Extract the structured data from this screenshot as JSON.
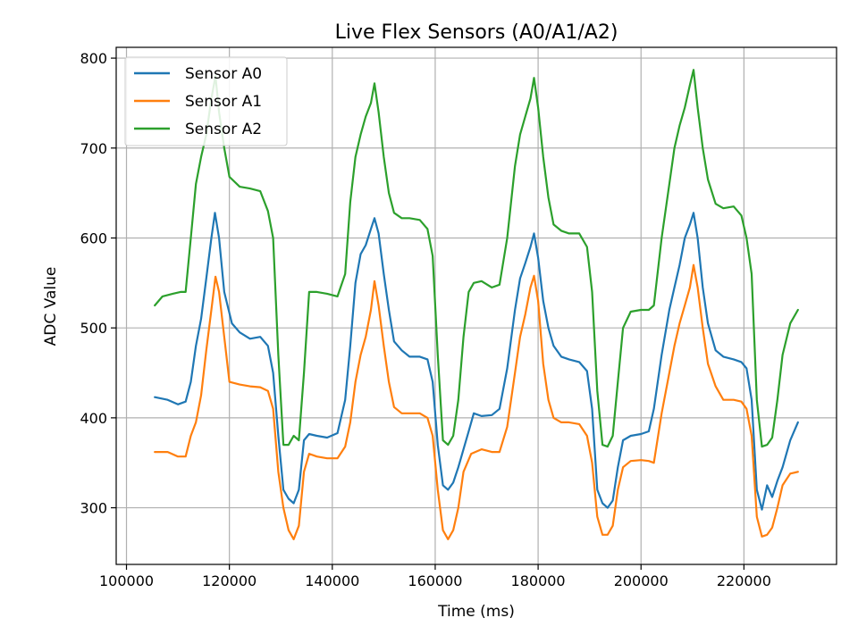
{
  "chart_data": {
    "type": "line",
    "title": "Live Flex Sensors (A0/A1/A2)",
    "xlabel": "Time (ms)",
    "ylabel": "ADC Value",
    "xlim": [
      98000,
      238000
    ],
    "ylim": [
      237,
      812
    ],
    "xticks": [
      100000,
      120000,
      140000,
      160000,
      180000,
      200000,
      220000
    ],
    "yticks": [
      300,
      400,
      500,
      600,
      700,
      800
    ],
    "grid": true,
    "legend_position": "top-left",
    "series": [
      {
        "name": "Sensor A0",
        "color": "#1f77b4",
        "points": [
          [
            105500,
            423
          ],
          [
            108000,
            420
          ],
          [
            110000,
            415
          ],
          [
            111500,
            418
          ],
          [
            112500,
            440
          ],
          [
            113500,
            480
          ],
          [
            114500,
            510
          ],
          [
            115500,
            555
          ],
          [
            116500,
            600
          ],
          [
            117200,
            628
          ],
          [
            118000,
            600
          ],
          [
            119000,
            540
          ],
          [
            120500,
            505
          ],
          [
            122000,
            495
          ],
          [
            124000,
            488
          ],
          [
            126000,
            490
          ],
          [
            127500,
            480
          ],
          [
            128500,
            450
          ],
          [
            129500,
            380
          ],
          [
            130500,
            320
          ],
          [
            131500,
            310
          ],
          [
            132500,
            305
          ],
          [
            133500,
            320
          ],
          [
            134500,
            375
          ],
          [
            135500,
            382
          ],
          [
            137000,
            380
          ],
          [
            139000,
            378
          ],
          [
            141000,
            383
          ],
          [
            142500,
            420
          ],
          [
            143500,
            480
          ],
          [
            144500,
            550
          ],
          [
            145500,
            582
          ],
          [
            146500,
            592
          ],
          [
            147500,
            610
          ],
          [
            148200,
            622
          ],
          [
            149000,
            605
          ],
          [
            150000,
            560
          ],
          [
            151000,
            520
          ],
          [
            152000,
            485
          ],
          [
            153500,
            475
          ],
          [
            155000,
            468
          ],
          [
            157000,
            468
          ],
          [
            158500,
            465
          ],
          [
            159500,
            440
          ],
          [
            160500,
            370
          ],
          [
            161500,
            325
          ],
          [
            162500,
            320
          ],
          [
            163500,
            328
          ],
          [
            164500,
            345
          ],
          [
            165500,
            365
          ],
          [
            166500,
            385
          ],
          [
            167500,
            405
          ],
          [
            169000,
            402
          ],
          [
            171000,
            403
          ],
          [
            172500,
            410
          ],
          [
            174000,
            455
          ],
          [
            175500,
            520
          ],
          [
            176500,
            555
          ],
          [
            177500,
            572
          ],
          [
            178500,
            590
          ],
          [
            179200,
            605
          ],
          [
            180000,
            578
          ],
          [
            181000,
            530
          ],
          [
            182000,
            500
          ],
          [
            183000,
            480
          ],
          [
            184500,
            468
          ],
          [
            186000,
            465
          ],
          [
            188000,
            462
          ],
          [
            189500,
            452
          ],
          [
            190500,
            410
          ],
          [
            191500,
            320
          ],
          [
            192500,
            305
          ],
          [
            193500,
            300
          ],
          [
            194500,
            308
          ],
          [
            195500,
            345
          ],
          [
            196500,
            375
          ],
          [
            198000,
            380
          ],
          [
            200000,
            382
          ],
          [
            201500,
            385
          ],
          [
            202500,
            410
          ],
          [
            204000,
            470
          ],
          [
            205500,
            520
          ],
          [
            206500,
            545
          ],
          [
            207500,
            570
          ],
          [
            208500,
            600
          ],
          [
            209500,
            615
          ],
          [
            210200,
            628
          ],
          [
            211000,
            600
          ],
          [
            212000,
            545
          ],
          [
            213000,
            505
          ],
          [
            214500,
            475
          ],
          [
            216000,
            468
          ],
          [
            218000,
            465
          ],
          [
            219500,
            462
          ],
          [
            220500,
            455
          ],
          [
            221500,
            420
          ],
          [
            222500,
            320
          ],
          [
            223500,
            298
          ],
          [
            224500,
            325
          ],
          [
            225500,
            312
          ],
          [
            226500,
            330
          ],
          [
            227500,
            345
          ],
          [
            229000,
            375
          ],
          [
            230500,
            395
          ]
        ]
      },
      {
        "name": "Sensor A1",
        "color": "#ff7f0e",
        "points": [
          [
            105500,
            362
          ],
          [
            108000,
            362
          ],
          [
            110000,
            357
          ],
          [
            111500,
            357
          ],
          [
            112500,
            380
          ],
          [
            113500,
            395
          ],
          [
            114500,
            425
          ],
          [
            115500,
            475
          ],
          [
            116500,
            520
          ],
          [
            117300,
            557
          ],
          [
            118000,
            540
          ],
          [
            119000,
            490
          ],
          [
            120000,
            440
          ],
          [
            122000,
            437
          ],
          [
            124000,
            435
          ],
          [
            126000,
            434
          ],
          [
            127500,
            430
          ],
          [
            128500,
            410
          ],
          [
            129500,
            340
          ],
          [
            130500,
            300
          ],
          [
            131500,
            275
          ],
          [
            132500,
            265
          ],
          [
            133500,
            280
          ],
          [
            134500,
            340
          ],
          [
            135500,
            360
          ],
          [
            137000,
            357
          ],
          [
            139000,
            355
          ],
          [
            141000,
            355
          ],
          [
            142500,
            368
          ],
          [
            143500,
            395
          ],
          [
            144500,
            440
          ],
          [
            145500,
            470
          ],
          [
            146500,
            490
          ],
          [
            147500,
            520
          ],
          [
            148200,
            552
          ],
          [
            149000,
            525
          ],
          [
            150000,
            480
          ],
          [
            151000,
            440
          ],
          [
            152000,
            412
          ],
          [
            153500,
            405
          ],
          [
            155000,
            405
          ],
          [
            157000,
            405
          ],
          [
            158500,
            400
          ],
          [
            159500,
            380
          ],
          [
            160500,
            320
          ],
          [
            161500,
            275
          ],
          [
            162500,
            265
          ],
          [
            163500,
            275
          ],
          [
            164500,
            300
          ],
          [
            165500,
            340
          ],
          [
            167000,
            360
          ],
          [
            169000,
            365
          ],
          [
            171000,
            362
          ],
          [
            172500,
            362
          ],
          [
            174000,
            390
          ],
          [
            175500,
            450
          ],
          [
            176500,
            490
          ],
          [
            177500,
            515
          ],
          [
            178500,
            545
          ],
          [
            179200,
            558
          ],
          [
            180000,
            530
          ],
          [
            181000,
            460
          ],
          [
            182000,
            420
          ],
          [
            183000,
            400
          ],
          [
            184500,
            395
          ],
          [
            186000,
            395
          ],
          [
            188000,
            393
          ],
          [
            189500,
            380
          ],
          [
            190500,
            350
          ],
          [
            191500,
            290
          ],
          [
            192500,
            270
          ],
          [
            193500,
            270
          ],
          [
            194500,
            280
          ],
          [
            195500,
            320
          ],
          [
            196500,
            345
          ],
          [
            198000,
            352
          ],
          [
            200000,
            353
          ],
          [
            201500,
            352
          ],
          [
            202500,
            350
          ],
          [
            204000,
            405
          ],
          [
            205500,
            450
          ],
          [
            206500,
            480
          ],
          [
            207500,
            505
          ],
          [
            208500,
            525
          ],
          [
            209500,
            545
          ],
          [
            210200,
            570
          ],
          [
            211000,
            545
          ],
          [
            212000,
            500
          ],
          [
            213000,
            460
          ],
          [
            214500,
            435
          ],
          [
            216000,
            420
          ],
          [
            218000,
            420
          ],
          [
            219500,
            418
          ],
          [
            220500,
            410
          ],
          [
            221500,
            380
          ],
          [
            222500,
            290
          ],
          [
            223500,
            268
          ],
          [
            224500,
            270
          ],
          [
            225500,
            278
          ],
          [
            226500,
            300
          ],
          [
            227500,
            325
          ],
          [
            229000,
            338
          ],
          [
            230500,
            340
          ]
        ]
      },
      {
        "name": "Sensor A2",
        "color": "#2ca02c",
        "points": [
          [
            105500,
            525
          ],
          [
            107000,
            535
          ],
          [
            109000,
            538
          ],
          [
            110500,
            540
          ],
          [
            111500,
            540
          ],
          [
            112500,
            600
          ],
          [
            113500,
            660
          ],
          [
            114500,
            690
          ],
          [
            115500,
            715
          ],
          [
            116500,
            755
          ],
          [
            117300,
            780
          ],
          [
            118000,
            740
          ],
          [
            119000,
            700
          ],
          [
            120000,
            668
          ],
          [
            122000,
            657
          ],
          [
            124000,
            655
          ],
          [
            126000,
            652
          ],
          [
            127500,
            630
          ],
          [
            128500,
            600
          ],
          [
            129500,
            470
          ],
          [
            130500,
            370
          ],
          [
            131500,
            370
          ],
          [
            132500,
            380
          ],
          [
            133500,
            375
          ],
          [
            134500,
            450
          ],
          [
            135500,
            540
          ],
          [
            137000,
            540
          ],
          [
            139000,
            538
          ],
          [
            141000,
            535
          ],
          [
            142500,
            560
          ],
          [
            143500,
            640
          ],
          [
            144500,
            690
          ],
          [
            145500,
            715
          ],
          [
            146500,
            735
          ],
          [
            147500,
            750
          ],
          [
            148200,
            772
          ],
          [
            149000,
            740
          ],
          [
            150000,
            690
          ],
          [
            151000,
            650
          ],
          [
            152000,
            628
          ],
          [
            153500,
            622
          ],
          [
            155000,
            622
          ],
          [
            157000,
            620
          ],
          [
            158500,
            610
          ],
          [
            159500,
            580
          ],
          [
            160500,
            470
          ],
          [
            161500,
            375
          ],
          [
            162500,
            370
          ],
          [
            163500,
            380
          ],
          [
            164500,
            420
          ],
          [
            165500,
            490
          ],
          [
            166500,
            540
          ],
          [
            167500,
            550
          ],
          [
            169000,
            552
          ],
          [
            171000,
            545
          ],
          [
            172500,
            548
          ],
          [
            174000,
            600
          ],
          [
            175500,
            680
          ],
          [
            176500,
            715
          ],
          [
            177500,
            735
          ],
          [
            178500,
            755
          ],
          [
            179200,
            778
          ],
          [
            180000,
            745
          ],
          [
            181000,
            690
          ],
          [
            182000,
            645
          ],
          [
            183000,
            615
          ],
          [
            184500,
            608
          ],
          [
            186000,
            605
          ],
          [
            188000,
            605
          ],
          [
            189500,
            590
          ],
          [
            190500,
            540
          ],
          [
            191500,
            430
          ],
          [
            192500,
            370
          ],
          [
            193500,
            368
          ],
          [
            194500,
            380
          ],
          [
            195500,
            440
          ],
          [
            196500,
            500
          ],
          [
            198000,
            518
          ],
          [
            200000,
            520
          ],
          [
            201500,
            520
          ],
          [
            202500,
            525
          ],
          [
            204000,
            600
          ],
          [
            205500,
            660
          ],
          [
            206500,
            700
          ],
          [
            207500,
            725
          ],
          [
            208500,
            745
          ],
          [
            209500,
            770
          ],
          [
            210200,
            787
          ],
          [
            211000,
            745
          ],
          [
            212000,
            700
          ],
          [
            213000,
            665
          ],
          [
            214500,
            638
          ],
          [
            216000,
            633
          ],
          [
            218000,
            635
          ],
          [
            219500,
            625
          ],
          [
            220500,
            600
          ],
          [
            221500,
            560
          ],
          [
            222500,
            420
          ],
          [
            223500,
            368
          ],
          [
            224500,
            370
          ],
          [
            225500,
            378
          ],
          [
            226500,
            420
          ],
          [
            227500,
            470
          ],
          [
            229000,
            505
          ],
          [
            230500,
            520
          ]
        ]
      }
    ]
  }
}
